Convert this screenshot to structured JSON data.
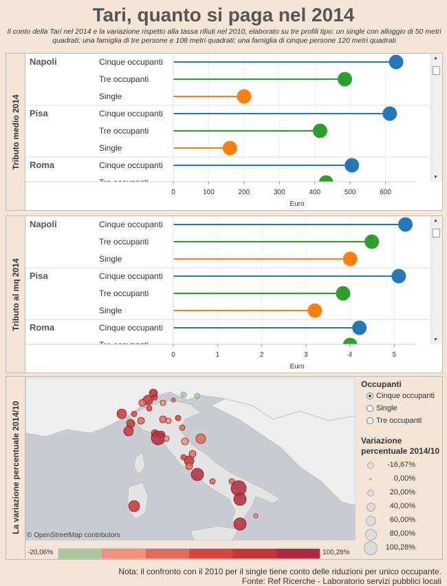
{
  "header": {
    "title": "Tari, quanto si paga nel 2014",
    "subtitle": "Il conto della Tari nel 2014 e la variazione rispetto alla tassa rifiuti nel 2010, elaborato su tre profili tipo: un single con alloggio di 50 metri quadrati; una famiglia di tre persone e 108 metri quadrati; una famiglia di cinque persone 120 metri quadrati"
  },
  "colors": {
    "cinque": "#2677b8",
    "tre": "#2ca02c",
    "single": "#ff7f0e"
  },
  "chart_data": [
    {
      "type": "lollipop",
      "title": "Tributo medio 2014",
      "xlabel": "Euro",
      "xlim": [
        0,
        700
      ],
      "ticks": [
        0,
        100,
        200,
        300,
        400,
        500,
        600
      ],
      "cities": [
        {
          "name": "Napoli",
          "rows": [
            {
              "profile": "Cinque occupanti",
              "value": 630
            },
            {
              "profile": "Tre occupanti",
              "value": 485
            },
            {
              "profile": "Single",
              "value": 200
            }
          ]
        },
        {
          "name": "Pisa",
          "rows": [
            {
              "profile": "Cinque occupanti",
              "value": 612
            },
            {
              "profile": "Tre occupanti",
              "value": 415
            },
            {
              "profile": "Single",
              "value": 160
            }
          ]
        },
        {
          "name": "Roma",
          "rows": [
            {
              "profile": "Cinque occupanti",
              "value": 505
            },
            {
              "profile": "Tre occupanti",
              "value": 432
            }
          ]
        }
      ]
    },
    {
      "type": "lollipop",
      "title": "Tributo al mq 2014",
      "xlabel": "Euro",
      "xlim": [
        0,
        5.6
      ],
      "ticks": [
        0,
        1,
        2,
        3,
        4,
        5
      ],
      "cities": [
        {
          "name": "Napoli",
          "rows": [
            {
              "profile": "Cinque occupanti",
              "value": 5.25
            },
            {
              "profile": "Tre occupanti",
              "value": 4.49
            },
            {
              "profile": "Single",
              "value": 4.0
            }
          ]
        },
        {
          "name": "Pisa",
          "rows": [
            {
              "profile": "Cinque occupanti",
              "value": 5.1
            },
            {
              "profile": "Tre occupanti",
              "value": 3.84
            },
            {
              "profile": "Single",
              "value": 3.2
            }
          ]
        },
        {
          "name": "Roma",
          "rows": [
            {
              "profile": "Cinque occupanti",
              "value": 4.21
            },
            {
              "profile": "Tre occupanti",
              "value": 4.0
            }
          ]
        }
      ]
    }
  ],
  "map": {
    "title": "La variazione percentuale 2014/10",
    "attribution": "© OpenStreetMap contributors"
  },
  "legend": {
    "occupanti_title": "Occupanti",
    "options": [
      {
        "label": "Cinque occupanti",
        "selected": true
      },
      {
        "label": "Single",
        "selected": false
      },
      {
        "label": "Tre occupanti",
        "selected": false
      }
    ],
    "variazione_title": "Variazione percentuale 2014/10",
    "sizes": [
      "-16,67%",
      "0,00%",
      "20,00%",
      "40,00%",
      "60,00%",
      "80,00%",
      "100,28%"
    ],
    "range_min": "-20,06%",
    "range_max": "100,28%",
    "color_steps": [
      "#afc69a",
      "#f3907d",
      "#e16c5c",
      "#d9463e",
      "#c33836",
      "#b02a3e"
    ]
  },
  "footer": {
    "note": "Nota: il confronto con il 2010 per il single tiene conto delle riduzioni per unico occupante.",
    "source": "Fonte: Ref Ricerche - Laboratorio servizi pubblici locali"
  }
}
